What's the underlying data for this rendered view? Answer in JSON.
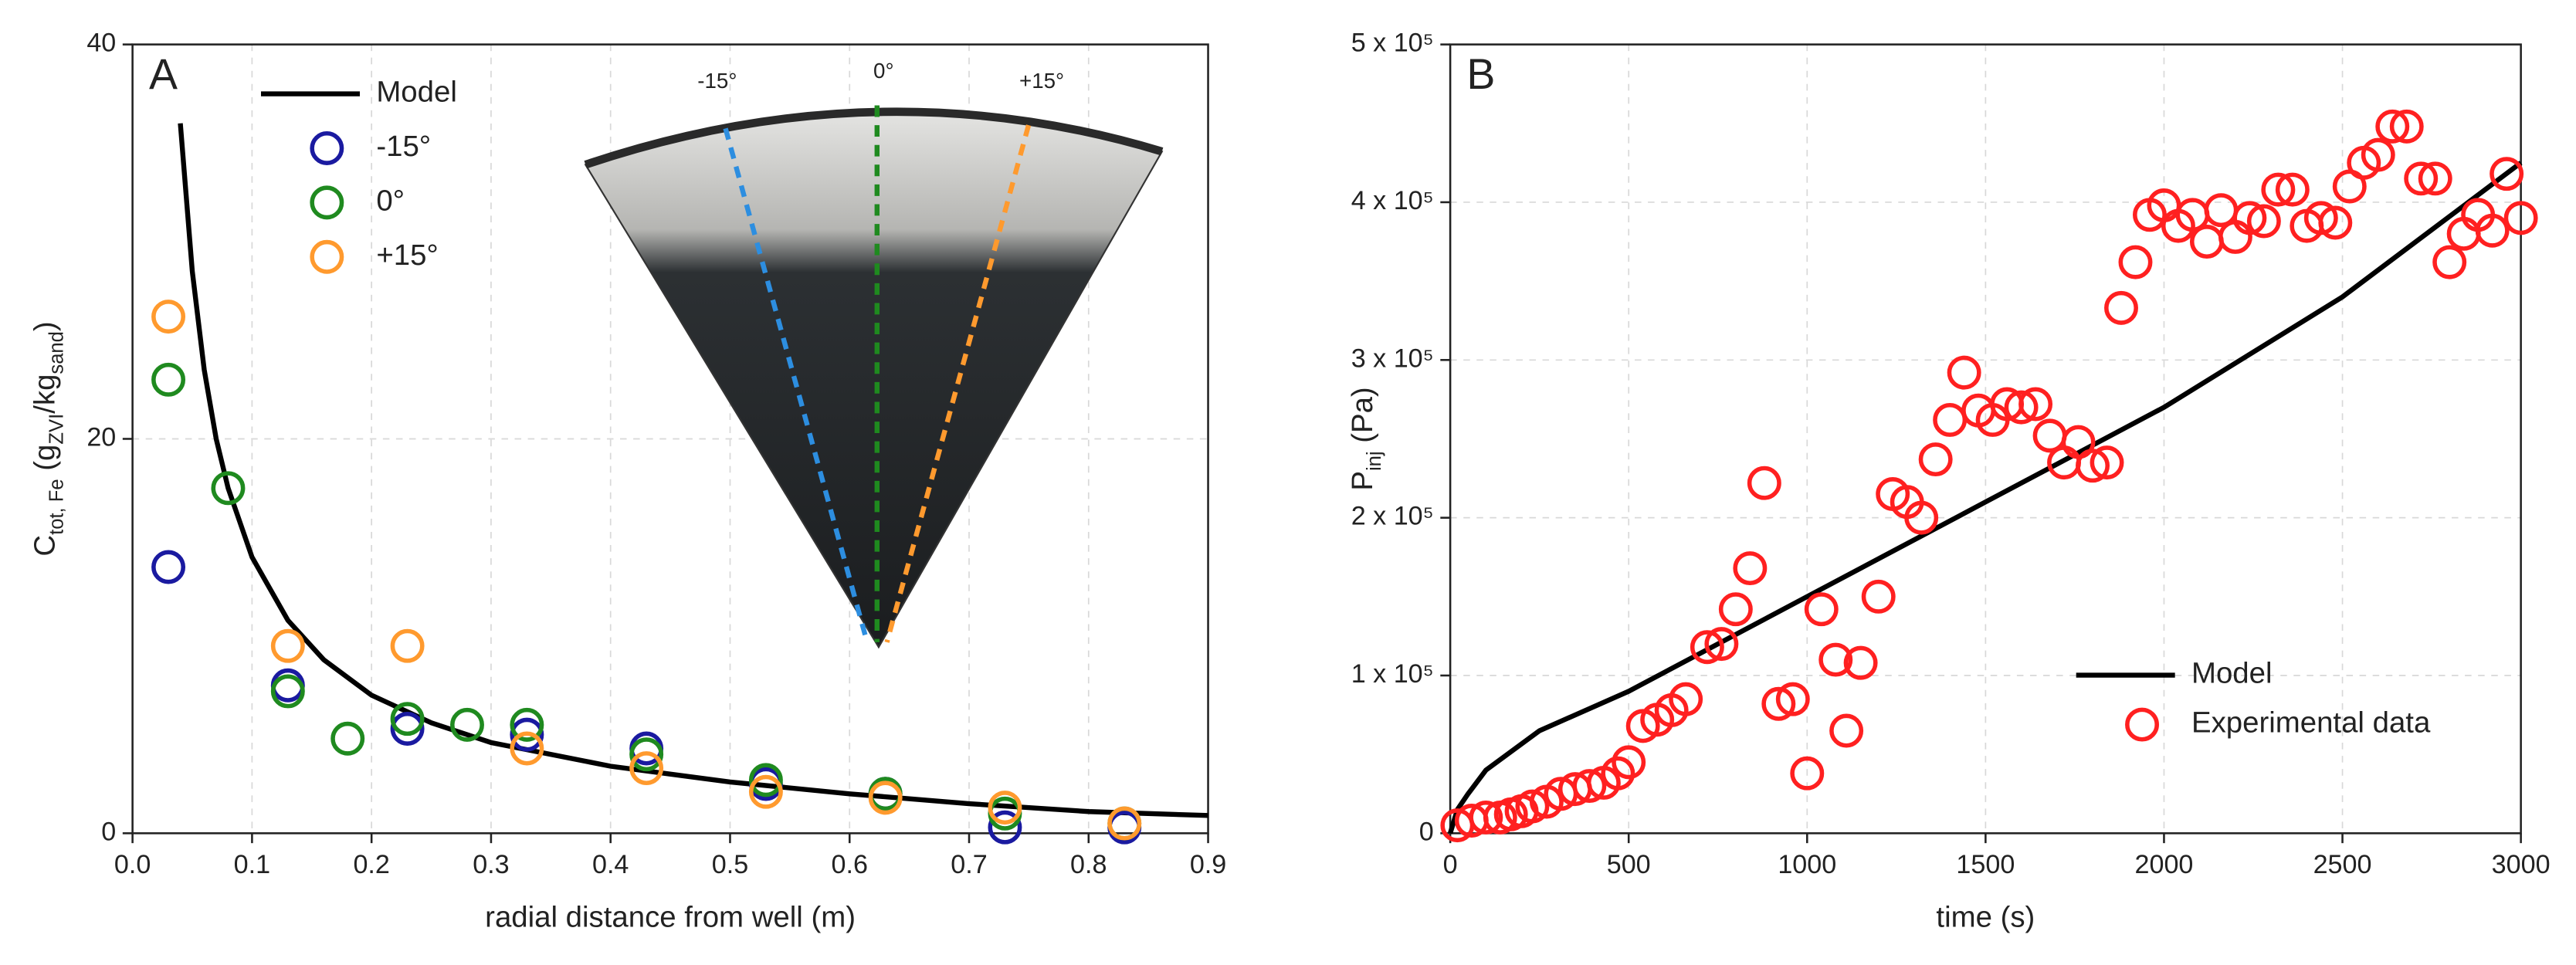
{
  "chart_data": [
    {
      "type": "scatter",
      "annotation": "A",
      "x_label": "radial distance from well (m)",
      "y_label": [
        {
          "text": "C"
        },
        {
          "text": "tot, Fe",
          "sub": true
        },
        {
          "text": " (g"
        },
        {
          "text": "ZVI",
          "sub": true
        },
        {
          "text": "/kg"
        },
        {
          "text": "sand",
          "sub": true
        },
        {
          "text": ")"
        }
      ],
      "xlim": [
        0,
        0.9
      ],
      "ylim": [
        0,
        40
      ],
      "xticks": [
        {
          "value": 0,
          "label": "0.0"
        },
        0.1,
        0.2,
        0.3,
        0.4,
        0.5,
        0.6,
        0.7,
        0.8,
        0.9
      ],
      "yticks": [
        0,
        20,
        40
      ],
      "grid": true,
      "legend": "upper left",
      "series": [
        {
          "name": "Model",
          "color": "#000000",
          "style": "line",
          "x": [
            0.04,
            0.05,
            0.06,
            0.07,
            0.08,
            0.1,
            0.13,
            0.16,
            0.2,
            0.25,
            0.3,
            0.4,
            0.5,
            0.6,
            0.7,
            0.8,
            0.9
          ],
          "values": [
            36,
            28.5,
            23.5,
            20,
            17.5,
            14,
            10.8,
            8.8,
            7,
            5.6,
            4.6,
            3.4,
            2.6,
            2,
            1.5,
            1.1,
            0.9
          ]
        },
        {
          "name": "-15°",
          "color": "#1a1aa0",
          "style": "markers",
          "x": [
            0.03,
            0.13,
            0.23,
            0.33,
            0.43,
            0.53,
            0.63,
            0.73,
            0.83
          ],
          "values": [
            13.5,
            7.5,
            5.3,
            5,
            4.3,
            2.5,
            2,
            0.3,
            0.3
          ]
        },
        {
          "name": "0°",
          "color": "#1f8a1f",
          "style": "markers",
          "x": [
            0.03,
            0.08,
            0.13,
            0.18,
            0.23,
            0.28,
            0.33,
            0.43,
            0.53,
            0.63,
            0.73,
            0.83
          ],
          "values": [
            23,
            17.5,
            7.2,
            4.8,
            5.8,
            5.5,
            5.5,
            4,
            2.7,
            2,
            1,
            0.5
          ]
        },
        {
          "name": "+15°",
          "color": "#ff9a2e",
          "style": "markers",
          "x": [
            0.03,
            0.13,
            0.23,
            0.33,
            0.43,
            0.53,
            0.63,
            0.73,
            0.83
          ],
          "values": [
            26.2,
            9.5,
            9.5,
            4.3,
            3.3,
            2.1,
            1.8,
            1.3,
            0.5
          ]
        }
      ],
      "inset_labels": [
        "-15°",
        "0°",
        "+15°"
      ]
    },
    {
      "type": "scatter",
      "annotation": "B",
      "x_label": "time (s)",
      "y_label": [
        {
          "text": "P"
        },
        {
          "text": "inj",
          "sub": true
        },
        {
          "text": " (Pa)"
        }
      ],
      "xlim": [
        0,
        3000
      ],
      "ylim": [
        0,
        500000
      ],
      "xticks": [
        0,
        500,
        1000,
        1500,
        2000,
        2500,
        3000
      ],
      "yticks": [
        0,
        {
          "value": 100000,
          "label": "1 x 10⁵"
        },
        {
          "value": 200000,
          "label": "2 x 10⁵"
        },
        {
          "value": 300000,
          "label": "3 x 10⁵"
        },
        {
          "value": 400000,
          "label": "4 x 10⁵"
        },
        {
          "value": 500000,
          "label": "5 x 10⁵"
        }
      ],
      "grid": true,
      "legend": "lower right",
      "series": [
        {
          "name": "Model",
          "color": "#000000",
          "style": "line",
          "x": [
            0,
            20,
            50,
            100,
            250,
            500,
            1000,
            1500,
            2000,
            2500,
            3000
          ],
          "values": [
            0,
            15000,
            25000,
            40000,
            65000,
            90000,
            150000,
            210000,
            270000,
            340000,
            425000
          ]
        },
        {
          "name": "Experimental data",
          "color": "#ff2020",
          "style": "markers",
          "x": [
            20,
            60,
            100,
            140,
            170,
            200,
            230,
            270,
            310,
            350,
            390,
            430,
            470,
            500,
            540,
            580,
            620,
            660,
            720,
            760,
            800,
            840,
            880,
            920,
            960,
            1000,
            1040,
            1080,
            1110,
            1150,
            1200,
            1240,
            1280,
            1320,
            1360,
            1400,
            1440,
            1480,
            1520,
            1560,
            1600,
            1640,
            1680,
            1720,
            1760,
            1800,
            1840,
            1880,
            1920,
            1960,
            2000,
            2040,
            2080,
            2120,
            2160,
            2200,
            2240,
            2280,
            2320,
            2360,
            2400,
            2440,
            2480,
            2520,
            2560,
            2600,
            2640,
            2680,
            2720,
            2760,
            2800,
            2840,
            2880,
            2920,
            2960,
            3000
          ],
          "values": [
            5000,
            8000,
            10000,
            10000,
            12000,
            14000,
            17000,
            20000,
            25000,
            28000,
            30000,
            32000,
            38000,
            45000,
            68000,
            72000,
            78000,
            85000,
            118000,
            120000,
            142000,
            168000,
            222000,
            82000,
            85000,
            38000,
            142000,
            110000,
            65000,
            108000,
            150000,
            215000,
            210000,
            200000,
            237000,
            262000,
            292000,
            268000,
            262000,
            272000,
            270000,
            272000,
            252000,
            235000,
            248000,
            233000,
            235000,
            333000,
            362000,
            392000,
            398000,
            385000,
            392000,
            375000,
            395000,
            378000,
            390000,
            388000,
            408000,
            408000,
            385000,
            390000,
            387000,
            410000,
            425000,
            430000,
            448000,
            448000,
            415000,
            415000,
            362000,
            380000,
            392000,
            382000,
            418000,
            390000
          ]
        }
      ]
    }
  ]
}
